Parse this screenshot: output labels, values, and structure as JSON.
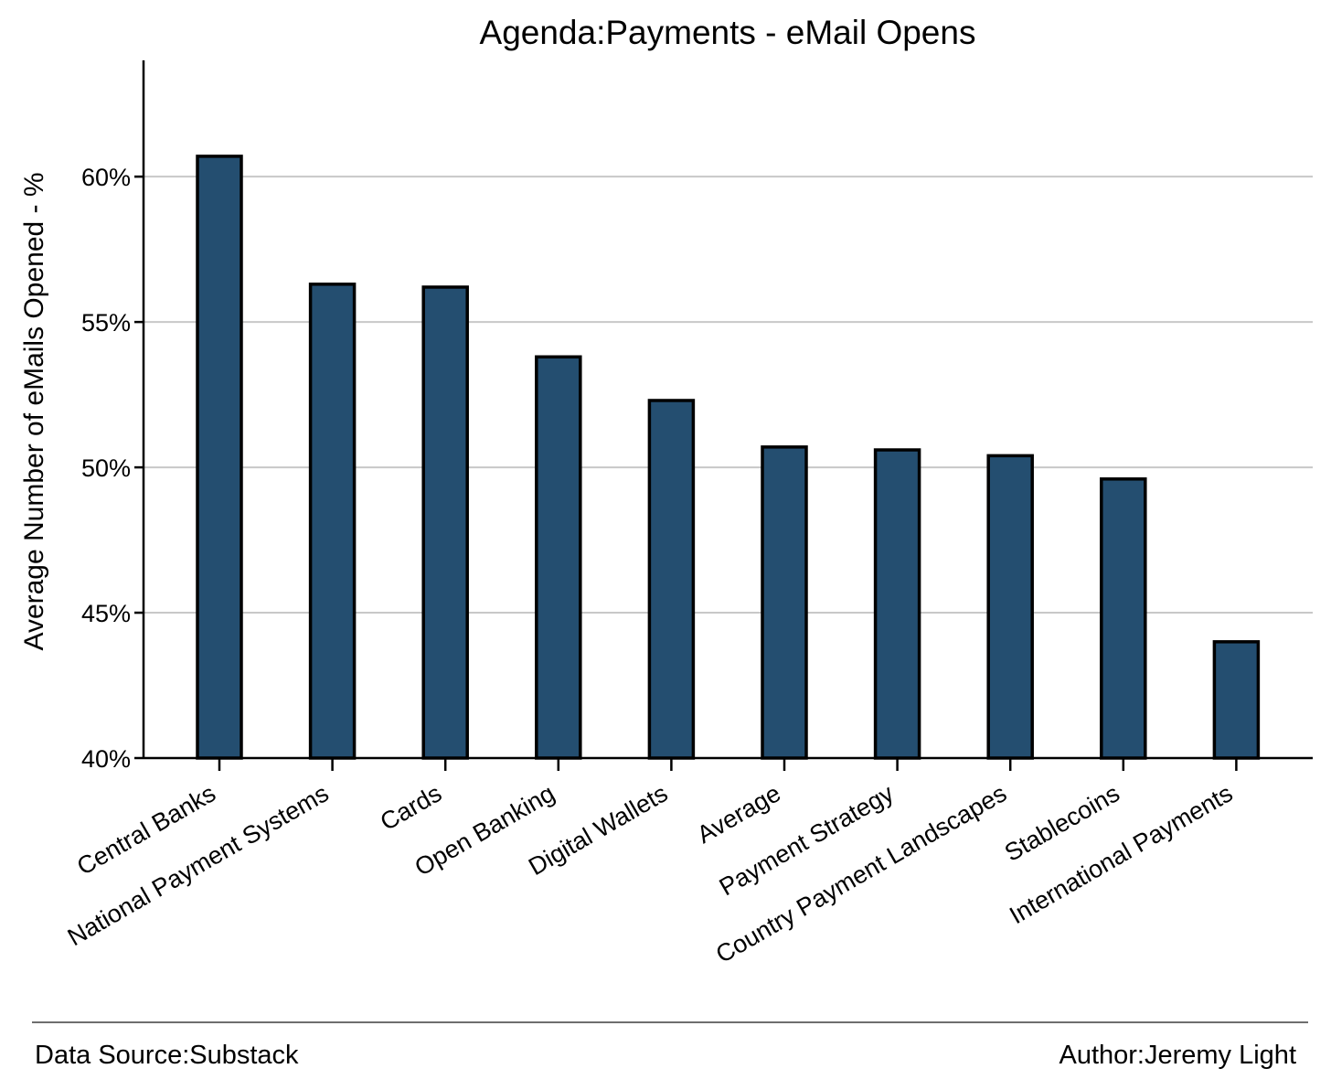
{
  "chart_data": {
    "type": "bar",
    "title": "Agenda:Payments - eMail Opens",
    "xlabel": "",
    "ylabel": "Average Number of eMails Opened - %",
    "categories": [
      "Central Banks",
      "National Payment Systems",
      "Cards",
      "Open Banking",
      "Digital Wallets",
      "Average",
      "Payment Strategy",
      "Country Payment Landscapes",
      "Stablecoins",
      "International Payments"
    ],
    "values": [
      60.7,
      56.3,
      56.2,
      53.8,
      52.3,
      50.7,
      50.6,
      50.4,
      49.6,
      44.0
    ],
    "ylim": [
      40,
      64
    ],
    "yticks": [
      40,
      45,
      50,
      55,
      60
    ],
    "ytick_labels": [
      "40%",
      "45%",
      "50%",
      "55%",
      "60%"
    ],
    "grid": "horizontal",
    "bar_color": "#244e70",
    "bar_edge_color": "#000000",
    "grid_color": "#c8c8c8"
  },
  "footer": {
    "source": "Data Source:Substack",
    "author": "Author:Jeremy Light"
  }
}
